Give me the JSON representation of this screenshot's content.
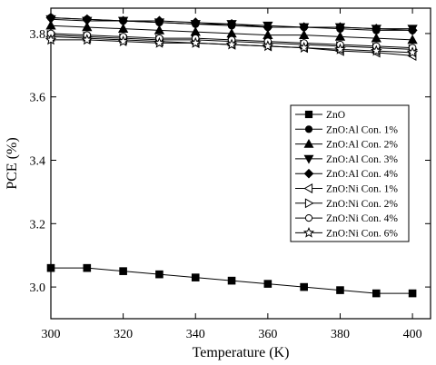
{
  "chart_data": {
    "type": "line",
    "xlabel": "Temperature (K)",
    "ylabel": "PCE (%)",
    "xlim": [
      300,
      405
    ],
    "ylim": [
      2.9,
      3.88
    ],
    "xticks": [
      300,
      320,
      340,
      360,
      380,
      400
    ],
    "yticks": [
      3.0,
      3.2,
      3.4,
      3.6,
      3.8
    ],
    "ytick_labels": [
      "3.0",
      "3.2",
      "3.4",
      "3.6",
      "3.8"
    ],
    "legend_position": "right",
    "x": [
      300,
      310,
      320,
      330,
      340,
      350,
      360,
      370,
      380,
      390,
      400
    ],
    "series": [
      {
        "name": "ZnO",
        "marker": "square",
        "values": [
          3.06,
          3.06,
          3.05,
          3.04,
          3.03,
          3.02,
          3.01,
          3.0,
          2.99,
          2.98,
          2.98
        ]
      },
      {
        "name": "ZnO:Al Con. 1%",
        "marker": "circle-filled",
        "values": [
          3.85,
          3.845,
          3.84,
          3.835,
          3.83,
          3.825,
          3.82,
          3.82,
          3.815,
          3.81,
          3.81
        ]
      },
      {
        "name": "ZnO:Al Con. 2%",
        "marker": "triangle-up-filled",
        "values": [
          3.825,
          3.82,
          3.815,
          3.81,
          3.805,
          3.8,
          3.795,
          3.795,
          3.79,
          3.785,
          3.78
        ]
      },
      {
        "name": "ZnO:Al Con. 3%",
        "marker": "triangle-down-filled",
        "values": [
          3.845,
          3.84,
          3.84,
          3.835,
          3.83,
          3.83,
          3.825,
          3.82,
          3.82,
          3.815,
          3.815
        ]
      },
      {
        "name": "ZnO:Al Con. 4%",
        "marker": "diamond-filled",
        "values": [
          3.85,
          3.845,
          3.84,
          3.84,
          3.835,
          3.83,
          3.82,
          3.82,
          3.82,
          3.815,
          3.81
        ]
      },
      {
        "name": "ZnO:Ni Con. 1%",
        "marker": "triangle-left-open",
        "values": [
          3.79,
          3.785,
          3.78,
          3.775,
          3.77,
          3.765,
          3.76,
          3.755,
          3.745,
          3.74,
          3.73
        ]
      },
      {
        "name": "ZnO:Ni Con. 2%",
        "marker": "triangle-right-open",
        "values": [
          3.795,
          3.79,
          3.785,
          3.78,
          3.78,
          3.775,
          3.77,
          3.765,
          3.76,
          3.755,
          3.75
        ]
      },
      {
        "name": "ZnO:Ni Con. 4%",
        "marker": "circle-open",
        "values": [
          3.8,
          3.795,
          3.79,
          3.785,
          3.785,
          3.78,
          3.775,
          3.77,
          3.765,
          3.76,
          3.755
        ]
      },
      {
        "name": "ZnO:Ni Con. 6%",
        "marker": "star-open",
        "values": [
          3.78,
          3.78,
          3.775,
          3.77,
          3.77,
          3.765,
          3.76,
          3.755,
          3.75,
          3.745,
          3.74
        ]
      }
    ]
  }
}
